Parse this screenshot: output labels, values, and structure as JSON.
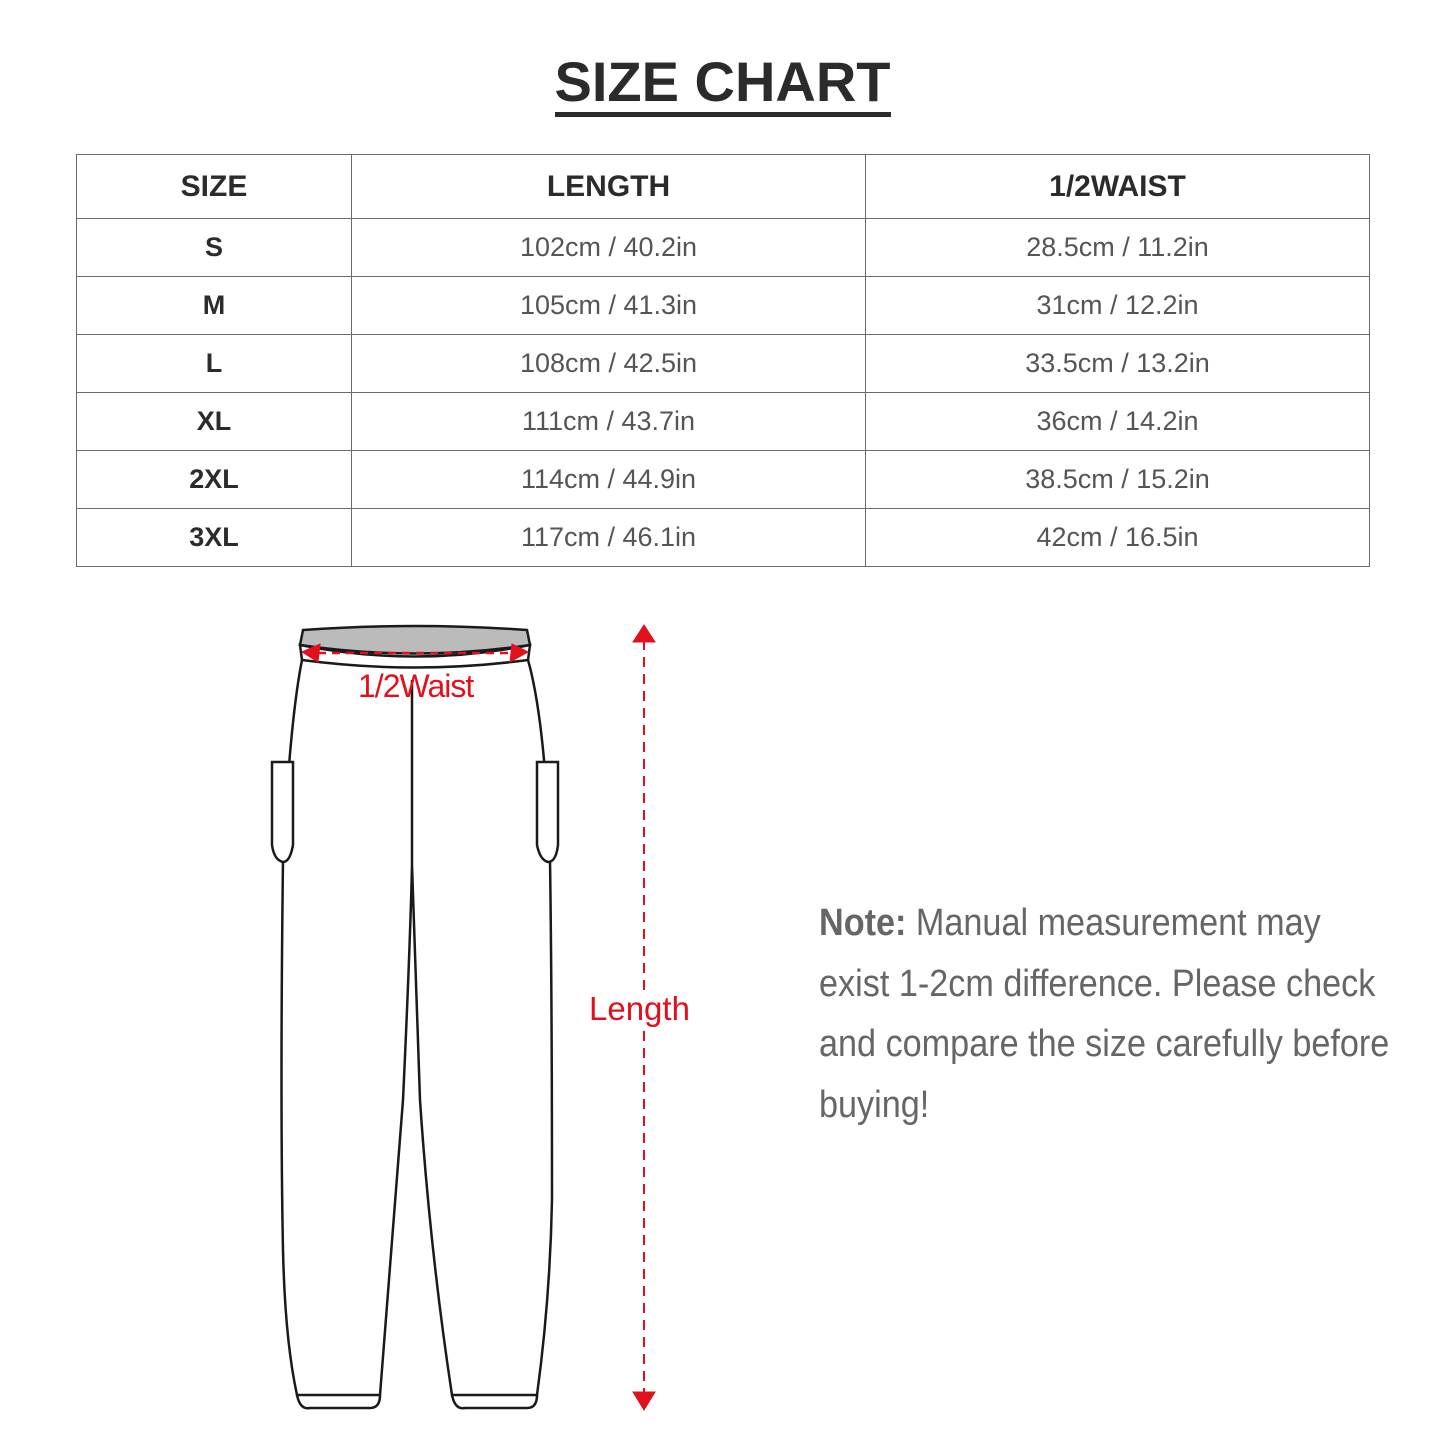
{
  "title": "SIZE CHART",
  "table": {
    "headers": [
      "SIZE",
      "LENGTH",
      "1/2WAIST"
    ],
    "rows": [
      {
        "size": "S",
        "length": "102cm / 40.2in",
        "waist": "28.5cm / 11.2in"
      },
      {
        "size": "M",
        "length": "105cm / 41.3in",
        "waist": "31cm / 12.2in"
      },
      {
        "size": "L",
        "length": "108cm / 42.5in",
        "waist": "33.5cm / 13.2in"
      },
      {
        "size": "XL",
        "length": "111cm / 43.7in",
        "waist": "36cm / 14.2in"
      },
      {
        "size": "2XL",
        "length": "114cm / 44.9in",
        "waist": "38.5cm / 15.2in"
      },
      {
        "size": "3XL",
        "length": "117cm / 46.1in",
        "waist": "42cm / 16.5in"
      }
    ]
  },
  "diagram": {
    "waist_label": "1/2Waist",
    "length_label": "Length",
    "accent_color": "#e2101c"
  },
  "note": {
    "label": "Note:",
    "text": " Manual measurement may exist 1-2cm difference. Please check and compare the size carefully before buying!"
  }
}
